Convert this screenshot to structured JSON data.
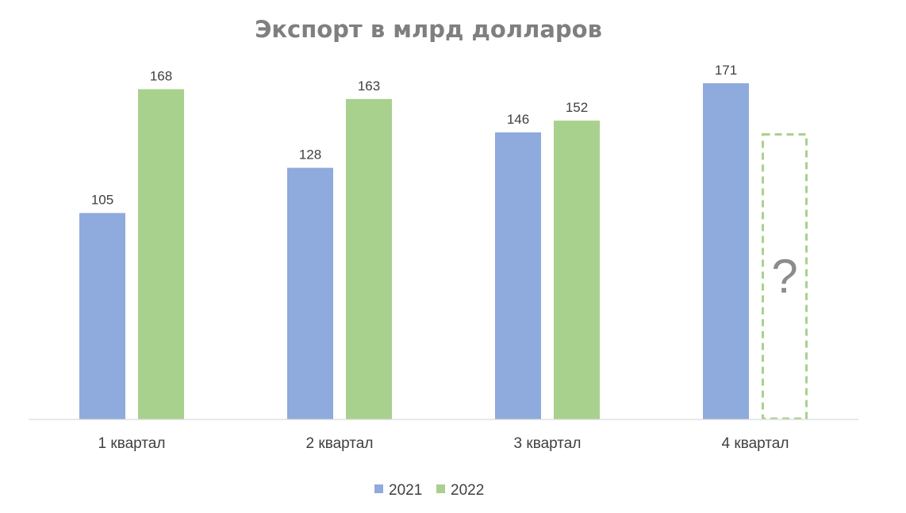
{
  "chart_data": {
    "type": "bar",
    "title": "Экспорт в млрд долларов",
    "xlabel": "",
    "ylabel": "",
    "categories": [
      "1 квартал",
      "2 квартал",
      "3 квартал",
      "4 квартал"
    ],
    "series": [
      {
        "name": "2021",
        "values": [
          105,
          128,
          146,
          171
        ],
        "color": "#8faadc"
      },
      {
        "name": "2022",
        "values": [
          168,
          163,
          152,
          null
        ],
        "color": "#a9d18e"
      }
    ],
    "ylim": [
      0,
      215
    ],
    "grid": false,
    "legend": "bottom",
    "unknown_marker": {
      "category": "4 квартал",
      "series": "2022",
      "label": "?",
      "estimated_value": 145
    }
  }
}
